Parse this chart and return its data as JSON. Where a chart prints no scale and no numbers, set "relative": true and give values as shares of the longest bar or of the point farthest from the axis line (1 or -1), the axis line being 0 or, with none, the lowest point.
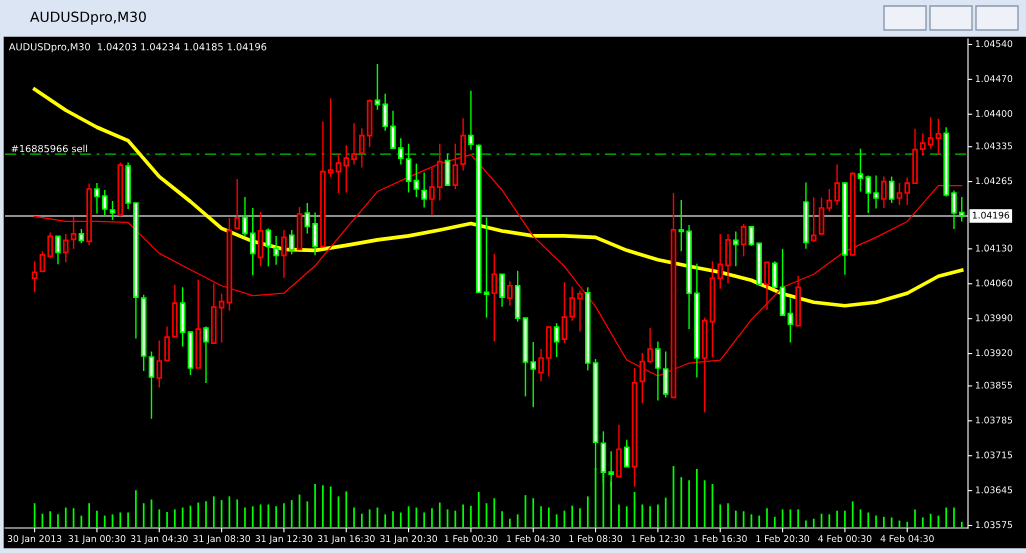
{
  "chart_data": [
    {
      "type": "candlestick",
      "title": "AUDUSDpro,M30",
      "subtitle": "AUDUSDpro,M30  1.04203 1.04234 1.04185 1.04196",
      "categories": [
        "30 Jan 2013",
        null,
        null,
        null,
        null,
        null,
        null,
        null,
        "31 Jan 00:30",
        null,
        null,
        null,
        null,
        null,
        null,
        null,
        "31 Jan 04:30",
        null,
        null,
        null,
        null,
        null,
        null,
        null,
        "31 Jan 08:30",
        null,
        null,
        null,
        null,
        null,
        null,
        null,
        "31 Jan 12:30",
        null,
        null,
        null,
        null,
        null,
        null,
        null,
        "31 Jan 16:30",
        null,
        null,
        null,
        null,
        null,
        null,
        null,
        "31 Jan 20:30",
        null,
        null,
        null,
        null,
        null,
        null,
        null,
        "1 Feb 00:30",
        null,
        null,
        null,
        null,
        null,
        null,
        null,
        "1 Feb 04:30",
        null,
        null,
        null,
        null,
        null,
        null,
        null,
        "1 Feb 08:30",
        null,
        null,
        null,
        null,
        null,
        null,
        null,
        "1 Feb 12:30",
        null,
        null,
        null,
        null,
        null,
        null,
        null,
        "1 Feb 16:30",
        null,
        null,
        null,
        null,
        null,
        null,
        null,
        "1 Feb 20:30",
        null,
        null,
        null,
        null,
        null,
        null,
        null,
        "4 Feb 00:30",
        null,
        null,
        null,
        null,
        null,
        null,
        null,
        "4 Feb 04:30",
        null,
        null,
        null,
        null,
        null,
        null,
        null
      ],
      "ylim": [
        1.0357,
        1.04551
      ],
      "yticks": [
        {
          "value": 1.0454,
          "label": "1.04540"
        },
        {
          "value": 1.0447,
          "label": "1.04470"
        },
        {
          "value": 1.044,
          "label": "1.04400"
        },
        {
          "value": 1.04335,
          "label": "1.04335"
        },
        {
          "value": 1.04265,
          "label": "1.04265"
        },
        {
          "value": 1.0413,
          "label": "1.04130"
        },
        {
          "value": 1.0406,
          "label": "1.04060"
        },
        {
          "value": 1.0399,
          "label": "1.03990"
        },
        {
          "value": 1.0392,
          "label": "1.03920"
        },
        {
          "value": 1.03855,
          "label": "1.03855"
        },
        {
          "value": 1.03785,
          "label": "1.03785"
        },
        {
          "value": 1.03715,
          "label": "1.03715"
        },
        {
          "value": 1.03645,
          "label": "1.03645"
        },
        {
          "value": 1.03575,
          "label": "1.03575"
        }
      ],
      "ohlc": [
        [
          1.04071,
          1.04105,
          1.04043,
          1.04083
        ],
        [
          1.04085,
          1.04125,
          1.04083,
          1.04118
        ],
        [
          1.04115,
          1.04163,
          1.04111,
          1.04155
        ],
        [
          1.04155,
          1.04155,
          1.04099,
          1.04123
        ],
        [
          1.04123,
          1.0416,
          1.04103,
          1.04147
        ],
        [
          1.04149,
          1.04194,
          1.0413,
          1.0416
        ],
        [
          1.0416,
          1.0417,
          1.04142,
          1.04147
        ],
        [
          1.04145,
          1.04261,
          1.04137,
          1.0425
        ],
        [
          1.0425,
          1.04262,
          1.04201,
          1.04235
        ],
        [
          1.04236,
          1.04248,
          1.04197,
          1.0421
        ],
        [
          1.04208,
          1.04226,
          1.04188,
          1.04202
        ],
        [
          1.04198,
          1.04303,
          1.04195,
          1.04298
        ],
        [
          1.04296,
          1.04303,
          1.0421,
          1.04222
        ],
        [
          1.04222,
          1.04222,
          1.0395,
          1.04033
        ],
        [
          1.04031,
          1.04038,
          1.03885,
          1.03915
        ],
        [
          1.03913,
          1.03924,
          1.03789,
          1.03873
        ],
        [
          1.03871,
          1.03946,
          1.03852,
          1.03905
        ],
        [
          1.03906,
          1.03974,
          1.03906,
          1.03953
        ],
        [
          1.03954,
          1.04058,
          1.03952,
          1.04021
        ],
        [
          1.04021,
          1.04053,
          1.03934,
          1.03963
        ],
        [
          1.03963,
          1.03964,
          1.03877,
          1.03891
        ],
        [
          1.03891,
          1.04068,
          1.03891,
          1.03969
        ],
        [
          1.03971,
          1.03974,
          1.03861,
          1.03944
        ],
        [
          1.03941,
          1.04061,
          1.03941,
          1.04013
        ],
        [
          1.04012,
          1.0404,
          1.03942,
          1.04024
        ],
        [
          1.04022,
          1.04192,
          1.04006,
          1.04167
        ],
        [
          1.04171,
          1.0427,
          1.04171,
          1.04192
        ],
        [
          1.04193,
          1.04234,
          1.04155,
          1.04161
        ],
        [
          1.04161,
          1.04212,
          1.04077,
          1.04121
        ],
        [
          1.04113,
          1.04204,
          1.04095,
          1.04166
        ],
        [
          1.04167,
          1.04171,
          1.04095,
          1.04135
        ],
        [
          1.04131,
          1.04156,
          1.04098,
          1.04117
        ],
        [
          1.04117,
          1.04168,
          1.04072,
          1.04153
        ],
        [
          1.04157,
          1.04168,
          1.04119,
          1.04128
        ],
        [
          1.04129,
          1.04214,
          1.04129,
          1.042
        ],
        [
          1.04202,
          1.04222,
          1.04161,
          1.04175
        ],
        [
          1.0418,
          1.04203,
          1.04117,
          1.04135
        ],
        [
          1.04135,
          1.04386,
          1.04133,
          1.04285
        ],
        [
          1.04283,
          1.04432,
          1.04274,
          1.04288
        ],
        [
          1.04285,
          1.0432,
          1.04242,
          1.04302
        ],
        [
          1.04297,
          1.04338,
          1.04243,
          1.04312
        ],
        [
          1.0431,
          1.04382,
          1.04299,
          1.0432
        ],
        [
          1.04322,
          1.04372,
          1.04293,
          1.04357
        ],
        [
          1.04357,
          1.0443,
          1.04334,
          1.04427
        ],
        [
          1.04428,
          1.04501,
          1.04409,
          1.0442
        ],
        [
          1.0442,
          1.04441,
          1.04367,
          1.04376
        ],
        [
          1.04376,
          1.04407,
          1.04332,
          1.04332
        ],
        [
          1.04332,
          1.04352,
          1.04299,
          1.04312
        ],
        [
          1.0431,
          1.04341,
          1.04243,
          1.04266
        ],
        [
          1.04267,
          1.04301,
          1.04234,
          1.0425
        ],
        [
          1.04247,
          1.04283,
          1.04213,
          1.0423
        ],
        [
          1.0423,
          1.04292,
          1.04197,
          1.04254
        ],
        [
          1.04254,
          1.04341,
          1.04227,
          1.04305
        ],
        [
          1.04307,
          1.04321,
          1.04258,
          1.04258
        ],
        [
          1.04258,
          1.04341,
          1.0425,
          1.04298
        ],
        [
          1.043,
          1.04392,
          1.04287,
          1.04357
        ],
        [
          1.04357,
          1.04447,
          1.04329,
          1.0434
        ],
        [
          1.04337,
          1.0434,
          1.04043,
          1.04043
        ],
        [
          1.04043,
          1.04193,
          1.03992,
          1.04039
        ],
        [
          1.04041,
          1.0412,
          1.03944,
          1.04079
        ],
        [
          1.04079,
          1.04079,
          1.04014,
          1.04033
        ],
        [
          1.04031,
          1.04065,
          1.04016,
          1.04056
        ],
        [
          1.04056,
          1.04086,
          1.03984,
          1.03991
        ],
        [
          1.03991,
          1.03991,
          1.03834,
          1.03903
        ],
        [
          1.03903,
          1.03943,
          1.03812,
          1.03889
        ],
        [
          1.03882,
          1.03929,
          1.03864,
          1.03911
        ],
        [
          1.03911,
          1.03974,
          1.03874,
          1.03973
        ],
        [
          1.03973,
          1.03981,
          1.03913,
          1.03944
        ],
        [
          1.03949,
          1.04063,
          1.03941,
          1.03993
        ],
        [
          1.03994,
          1.04054,
          1.03986,
          1.04031
        ],
        [
          1.0403,
          1.04047,
          1.03964,
          1.0404
        ],
        [
          1.04042,
          1.04053,
          1.03886,
          1.03901
        ],
        [
          1.03901,
          1.03909,
          1.03687,
          1.03742
        ],
        [
          1.0374,
          1.03764,
          1.0366,
          1.03682
        ],
        [
          1.03682,
          1.03724,
          1.03653,
          1.03678
        ],
        [
          1.03673,
          1.03777,
          1.03672,
          1.03728
        ],
        [
          1.03732,
          1.03747,
          1.03693,
          1.03693
        ],
        [
          1.03693,
          1.03891,
          1.03653,
          1.03861
        ],
        [
          1.03864,
          1.03921,
          1.0382,
          1.03904
        ],
        [
          1.03904,
          1.03971,
          1.03901,
          1.03929
        ],
        [
          1.03929,
          1.03944,
          1.03826,
          1.03891
        ],
        [
          1.03889,
          1.03924,
          1.03832,
          1.03839
        ],
        [
          1.03832,
          1.04242,
          1.03832,
          1.04168
        ],
        [
          1.04168,
          1.04228,
          1.04125,
          1.04165
        ],
        [
          1.04165,
          1.04178,
          1.03969,
          1.04041
        ],
        [
          1.04041,
          1.041,
          1.03872,
          1.03911
        ],
        [
          1.03911,
          1.03992,
          1.03802,
          1.03986
        ],
        [
          1.03984,
          1.04105,
          1.03913,
          1.04071
        ],
        [
          1.04071,
          1.0416,
          1.0405,
          1.04099
        ],
        [
          1.04097,
          1.0416,
          1.04061,
          1.04148
        ],
        [
          1.04147,
          1.04165,
          1.04095,
          1.04139
        ],
        [
          1.04139,
          1.0418,
          1.04115,
          1.04174
        ],
        [
          1.04174,
          1.04176,
          1.04136,
          1.04139
        ],
        [
          1.04141,
          1.04141,
          1.04059,
          1.04059
        ],
        [
          1.04059,
          1.04103,
          1.04008,
          1.04103
        ],
        [
          1.04101,
          1.04105,
          1.04053,
          1.04053
        ],
        [
          1.04053,
          1.0413,
          1.03997,
          1.03997
        ],
        [
          1.04,
          1.04031,
          1.03942,
          1.03979
        ],
        [
          1.03976,
          1.04076,
          1.03976,
          1.04053
        ],
        [
          1.04224,
          1.04263,
          1.0413,
          1.04143
        ],
        [
          1.04147,
          1.04233,
          1.04145,
          1.04157
        ],
        [
          1.0416,
          1.04233,
          1.0416,
          1.04212
        ],
        [
          1.04212,
          1.0425,
          1.04205,
          1.04227
        ],
        [
          1.04227,
          1.04299,
          1.04218,
          1.04262
        ],
        [
          1.04262,
          1.04263,
          1.04078,
          1.04118
        ],
        [
          1.04118,
          1.04284,
          1.04118,
          1.04281
        ],
        [
          1.0428,
          1.04331,
          1.04245,
          1.04272
        ],
        [
          1.04274,
          1.04277,
          1.04202,
          1.04242
        ],
        [
          1.04242,
          1.04277,
          1.04211,
          1.04232
        ],
        [
          1.0423,
          1.04275,
          1.04212,
          1.04265
        ],
        [
          1.04265,
          1.04275,
          1.04222,
          1.0423
        ],
        [
          1.04232,
          1.04262,
          1.04218,
          1.04242
        ],
        [
          1.04242,
          1.04273,
          1.04218,
          1.04262
        ],
        [
          1.04262,
          1.04371,
          1.04262,
          1.04329
        ],
        [
          1.0433,
          1.04362,
          1.04317,
          1.04342
        ],
        [
          1.04339,
          1.04394,
          1.04331,
          1.04352
        ],
        [
          1.04352,
          1.04391,
          1.04319,
          1.04361
        ],
        [
          1.04362,
          1.04374,
          1.04235,
          1.04238
        ],
        [
          1.04242,
          1.04247,
          1.0417,
          1.04202
        ],
        [
          1.04203,
          1.04234,
          1.04185,
          1.04196
        ]
      ],
      "colors": [
        "#ff0000",
        "#ff0000",
        "#ff0000",
        "#00ff00",
        "#ff0000",
        "#ff0000",
        "#00ff00",
        "#ff0000",
        "#00ff00",
        "#00ff00",
        "#00ff00",
        "#ff0000",
        "#00ff00",
        "#00ff00",
        "#00ff00",
        "#00ff00",
        "#ff0000",
        "#ff0000",
        "#ff0000",
        "#00ff00",
        "#00ff00",
        "#ff0000",
        "#00ff00",
        "#ff0000",
        "#ff0000",
        "#ff0000",
        "#ff0000",
        "#00ff00",
        "#00ff00",
        "#ff0000",
        "#00ff00",
        "#00ff00",
        "#ff0000",
        "#00ff00",
        "#ff0000",
        "#00ff00",
        "#00ff00",
        "#ff0000",
        "#ff0000",
        "#ff0000",
        "#ff0000",
        "#ff0000",
        "#ff0000",
        "#ff0000",
        "#00ff00",
        "#00ff00",
        "#00ff00",
        "#00ff00",
        "#00ff00",
        "#00ff00",
        "#00ff00",
        "#ff0000",
        "#ff0000",
        "#00ff00",
        "#ff0000",
        "#ff0000",
        "#00ff00",
        "#00ff00",
        "#00ff00",
        "#ff0000",
        "#00ff00",
        "#ff0000",
        "#00ff00",
        "#00ff00",
        "#00ff00",
        "#ff0000",
        "#ff0000",
        "#00ff00",
        "#ff0000",
        "#ff0000",
        "#ff0000",
        "#00ff00",
        "#00ff00",
        "#00ff00",
        "#00ff00",
        "#ff0000",
        "#00ff00",
        "#ff0000",
        "#ff0000",
        "#ff0000",
        "#00ff00",
        "#00ff00",
        "#ff0000",
        "#00ff00",
        "#00ff00",
        "#00ff00",
        "#ff0000",
        "#ff0000",
        "#ff0000",
        "#ff0000",
        "#00ff00",
        "#ff0000",
        "#00ff00",
        "#00ff00",
        "#ff0000",
        "#00ff00",
        "#00ff00",
        "#00ff00",
        "#ff0000",
        "#00ff00",
        "#ff0000",
        "#ff0000",
        "#ff0000",
        "#ff0000",
        "#00ff00",
        "#ff0000",
        "#00ff00",
        "#00ff00",
        "#00ff00",
        "#ff0000",
        "#00ff00",
        "#ff0000",
        "#ff0000",
        "#ff0000",
        "#ff0000",
        "#ff0000",
        "#ff0000",
        "#00ff00",
        "#00ff00",
        "#00ff00"
      ],
      "series": [
        {
          "type": "line",
          "color": "#ffff00",
          "values": [
            1.0445,
            null,
            null,
            null,
            1.04408,
            null,
            null,
            null,
            1.04374,
            null,
            null,
            null,
            1.04347,
            null,
            null,
            null,
            1.04275,
            null,
            null,
            null,
            1.04225,
            null,
            null,
            null,
            1.04171,
            null,
            null,
            null,
            1.04145,
            null,
            null,
            null,
            1.04129,
            null,
            null,
            null,
            1.04127,
            null,
            null,
            null,
            1.04137,
            null,
            null,
            null,
            1.04148,
            null,
            null,
            null,
            1.04156,
            null,
            null,
            null,
            1.04168,
            null,
            null,
            null,
            1.04181,
            null,
            null,
            null,
            1.04166,
            null,
            null,
            null,
            1.04156,
            null,
            null,
            null,
            1.04156,
            null,
            null,
            null,
            1.04153,
            null,
            null,
            null,
            1.04127,
            null,
            null,
            null,
            1.04108,
            null,
            null,
            null,
            1.04095,
            null,
            null,
            null,
            1.04083,
            null,
            null,
            null,
            1.04067,
            null,
            null,
            null,
            1.0404,
            null,
            null,
            null,
            1.04023,
            null,
            null,
            null,
            1.04016,
            null,
            null,
            null,
            1.04023,
            null,
            null,
            null,
            1.04041,
            null,
            null,
            null,
            1.04075,
            null,
            null,
            1.04087
          ]
        },
        {
          "type": "line",
          "color": "#ff0000",
          "values": [
            1.04195,
            null,
            null,
            null,
            1.04185,
            null,
            null,
            null,
            1.04185,
            null,
            null,
            null,
            1.04183,
            null,
            null,
            null,
            1.04121,
            null,
            null,
            null,
            1.04088,
            null,
            null,
            null,
            1.04056,
            null,
            null,
            null,
            1.04036,
            null,
            null,
            null,
            1.04041,
            null,
            null,
            null,
            1.04096,
            null,
            null,
            null,
            1.04171,
            null,
            null,
            null,
            1.04245,
            null,
            null,
            null,
            1.04274,
            null,
            null,
            null,
            1.04301,
            null,
            null,
            null,
            1.04319,
            null,
            null,
            null,
            1.04248,
            null,
            null,
            null,
            1.04155,
            null,
            null,
            null,
            1.04095,
            null,
            null,
            null,
            1.04014,
            null,
            null,
            null,
            1.03907,
            null,
            null,
            null,
            1.03875,
            null,
            null,
            null,
            1.03901,
            null,
            null,
            null,
            1.03907,
            null,
            null,
            null,
            1.03988,
            null,
            null,
            null,
            1.04053,
            null,
            null,
            null,
            1.04079,
            null,
            null,
            null,
            1.04125,
            null,
            null,
            null,
            1.04153,
            null,
            null,
            null,
            1.04185,
            null,
            null,
            null,
            1.04257,
            null,
            null,
            1.04257
          ]
        }
      ],
      "ref_lines": [
        {
          "axis": "y",
          "value": 1.0432,
          "label": "#16885966 sell",
          "color": "#00c800",
          "line_style": "dashed"
        },
        {
          "axis": "y",
          "value": 1.04196,
          "label": "1.04196",
          "color": "#c0c0c0",
          "line_style": "solid"
        }
      ],
      "grid": false,
      "legend": false
    },
    {
      "type": "bar",
      "relative": true,
      "color": "#00ff00",
      "categories": [
        null,
        null,
        null,
        null,
        null,
        null,
        null,
        null,
        null,
        null,
        null,
        null,
        null,
        null,
        null,
        null,
        null,
        null,
        null,
        null,
        null,
        null,
        null,
        null,
        null,
        null,
        null,
        null,
        null,
        null,
        null,
        null,
        null,
        null,
        null,
        null,
        null,
        null,
        null,
        null,
        null,
        null,
        null,
        null,
        null,
        null,
        null,
        null,
        null,
        null,
        null,
        null,
        null,
        null,
        null,
        null,
        null,
        null,
        null,
        null,
        null,
        null,
        null,
        null,
        null,
        null,
        null,
        null,
        null,
        null,
        null,
        null,
        null,
        null,
        null,
        null,
        null,
        null,
        null,
        null,
        null,
        null,
        null,
        null,
        null,
        null,
        null,
        null,
        null,
        null,
        null,
        null,
        null,
        null,
        null,
        null,
        null,
        null,
        null,
        null,
        null,
        null,
        null,
        null,
        null,
        null,
        null,
        null,
        null,
        null,
        null,
        null,
        null,
        null,
        null,
        null,
        null,
        null,
        null,
        null
      ],
      "values": [
        0.4,
        0.23,
        0.27,
        0.22,
        0.33,
        0.32,
        0.2,
        0.4,
        0.28,
        0.2,
        0.22,
        0.25,
        0.25,
        0.61,
        0.4,
        0.46,
        0.3,
        0.26,
        0.3,
        0.33,
        0.36,
        0.41,
        0.43,
        0.51,
        0.45,
        0.51,
        0.46,
        0.33,
        0.35,
        0.38,
        0.38,
        0.35,
        0.4,
        0.45,
        0.54,
        0.43,
        0.71,
        0.69,
        0.67,
        0.51,
        0.59,
        0.33,
        0.23,
        0.3,
        0.33,
        0.22,
        0.27,
        0.25,
        0.35,
        0.33,
        0.25,
        0.32,
        0.41,
        0.3,
        0.28,
        0.38,
        0.36,
        0.58,
        0.4,
        0.48,
        0.27,
        0.15,
        0.22,
        0.53,
        0.48,
        0.35,
        0.33,
        0.22,
        0.28,
        0.36,
        0.32,
        0.51,
        0.97,
        0.91,
        0.75,
        0.38,
        0.35,
        0.58,
        0.38,
        0.35,
        0.38,
        0.49,
        1,
        0.82,
        0.77,
        0.95,
        0.77,
        0.71,
        0.38,
        0.4,
        0.28,
        0.27,
        0.22,
        0.2,
        0.32,
        0.18,
        0.3,
        0.3,
        0.3,
        0.12,
        0.15,
        0.23,
        0.22,
        0.28,
        0.28,
        0.43,
        0.3,
        0.25,
        0.2,
        0.18,
        0.17,
        0.12,
        0.1,
        0.3,
        0.17,
        0.23,
        0.2,
        0.33,
        0.33,
        0.1
      ]
    }
  ]
}
